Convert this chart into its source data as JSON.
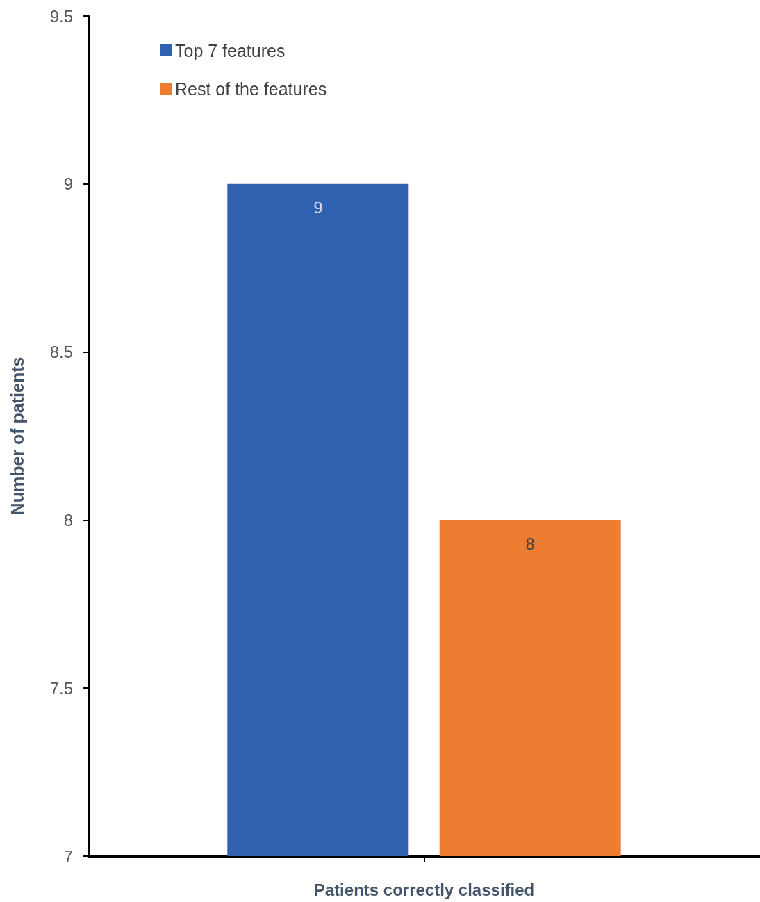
{
  "chart_data": {
    "type": "bar",
    "ylabel": "Number of patients",
    "categories": [
      "Patients correctly classified"
    ],
    "series": [
      {
        "name": "Top 7 features",
        "color": "#3060b0",
        "values": [
          9
        ]
      },
      {
        "name": "Rest of the features",
        "color": "#ed7d31",
        "values": [
          8
        ]
      }
    ],
    "ylim": [
      7,
      9.5
    ],
    "yticks": [
      7,
      7.5,
      8,
      8.5,
      9,
      9.5
    ],
    "grid": false,
    "legend": "top left",
    "data_labels": true
  }
}
